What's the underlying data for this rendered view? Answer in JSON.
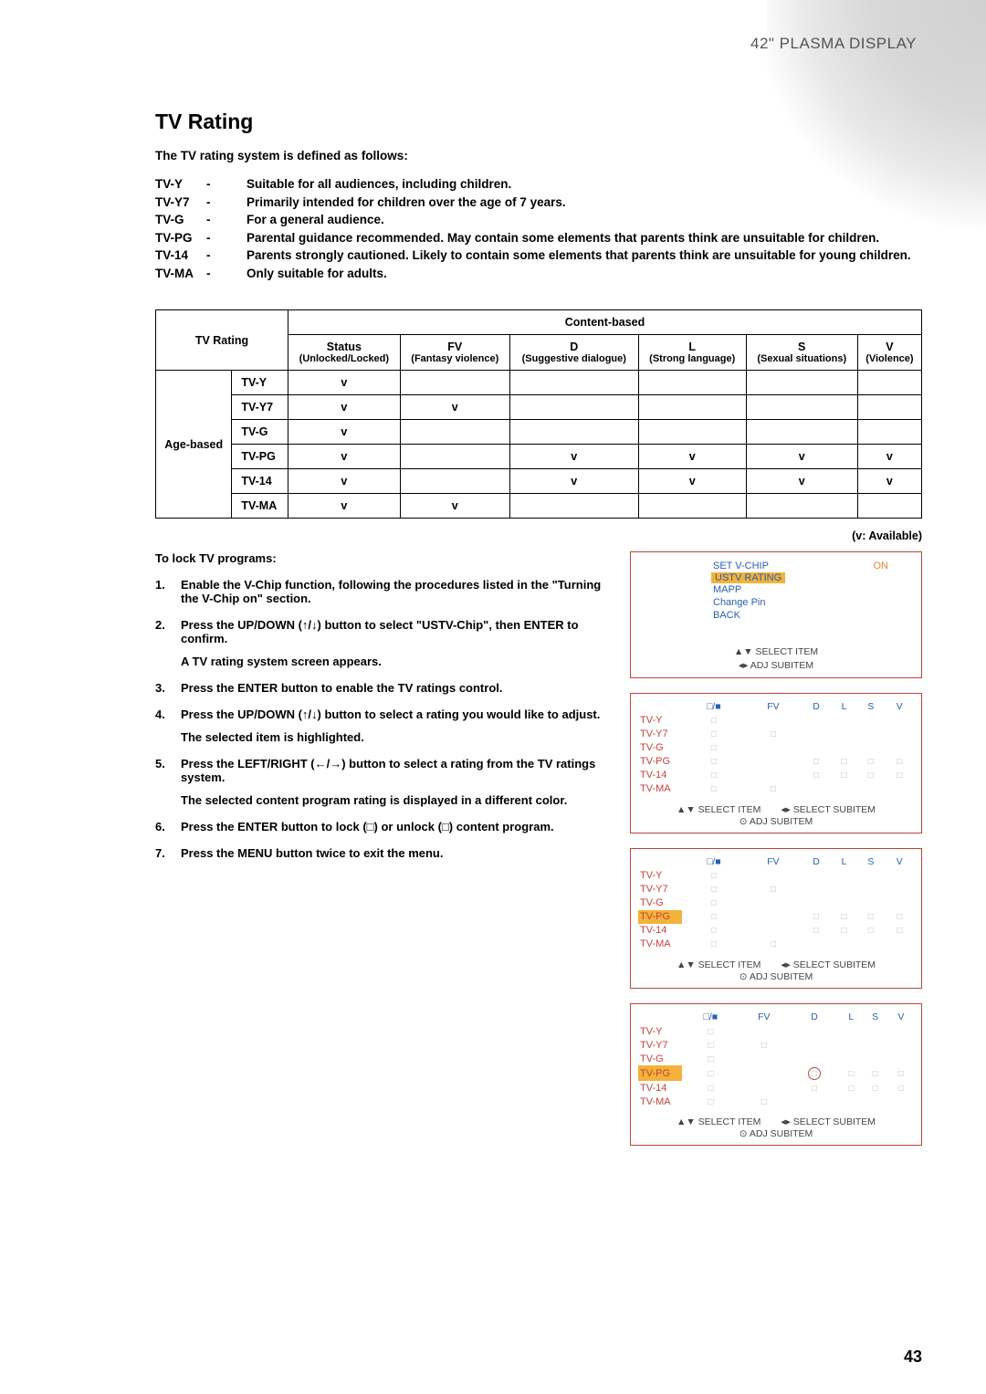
{
  "header": {
    "product": "42\" PLASMA DISPLAY"
  },
  "title": "TV Rating",
  "intro": "The TV rating system is defined as follows:",
  "definitions": [
    {
      "code": "TV-Y",
      "text": "Suitable for all audiences, including children."
    },
    {
      "code": "TV-Y7",
      "text": "Primarily intended for children over the age of 7 years."
    },
    {
      "code": "TV-G",
      "text": "For a general audience."
    },
    {
      "code": "TV-PG",
      "text": "Parental guidance recommended. May contain some elements that parents think are unsuitable for children."
    },
    {
      "code": "TV-14",
      "text": "Parents strongly cautioned. Likely to contain some elements that parents think are unsuitable for young children."
    },
    {
      "code": "TV-MA",
      "text": "Only suitable for adults."
    }
  ],
  "table": {
    "tvrating_header": "TV Rating",
    "content_header": "Content-based",
    "age_based": "Age-based",
    "cols": {
      "status": {
        "h": "Status",
        "s": "(Unlocked/Locked)"
      },
      "fv": {
        "h": "FV",
        "s": "(Fantasy violence)"
      },
      "d": {
        "h": "D",
        "s": "(Suggestive dialogue)"
      },
      "l": {
        "h": "L",
        "s": "(Strong language)"
      },
      "ss": {
        "h": "S",
        "s": "(Sexual situations)"
      },
      "v": {
        "h": "V",
        "s": "(Violence)"
      }
    },
    "rows": [
      {
        "label": "TV-Y",
        "cells": [
          "v",
          "",
          "",
          "",
          "",
          ""
        ]
      },
      {
        "label": "TV-Y7",
        "cells": [
          "v",
          "v",
          "",
          "",
          "",
          ""
        ]
      },
      {
        "label": "TV-G",
        "cells": [
          "v",
          "",
          "",
          "",
          "",
          ""
        ]
      },
      {
        "label": "TV-PG",
        "cells": [
          "v",
          "",
          "v",
          "v",
          "v",
          "v"
        ]
      },
      {
        "label": "TV-14",
        "cells": [
          "v",
          "",
          "v",
          "v",
          "v",
          "v"
        ]
      },
      {
        "label": "TV-MA",
        "cells": [
          "v",
          "v",
          "",
          "",
          "",
          ""
        ]
      }
    ]
  },
  "avail_note": "(v:  Available)",
  "instructions": {
    "lead": "To lock TV programs:",
    "steps": [
      {
        "n": "1.",
        "step": "Enable the V-Chip function, following the procedures listed in the \"Turning the V-Chip on\" section.",
        "note": ""
      },
      {
        "n": "2.",
        "step": "Press the UP/DOWN (↑/↓) button to select \"USTV-Chip\", then ENTER to confirm.",
        "note": "A TV rating system screen appears."
      },
      {
        "n": "3.",
        "step": "Press the ENTER button to enable the TV ratings control.",
        "note": ""
      },
      {
        "n": "4.",
        "step": "Press the UP/DOWN (↑/↓) button to select a rating you would like to adjust.",
        "note": "The selected item is highlighted."
      },
      {
        "n": "5.",
        "step": "Press the LEFT/RIGHT (←/→) button to select a rating from the TV ratings system.",
        "note": "The selected content program rating is displayed in a different color."
      },
      {
        "n": "6.",
        "step": "Press the ENTER button to lock (□) or unlock (□) content program.",
        "note": ""
      },
      {
        "n": "7.",
        "step": "Press the MENU button twice to exit the menu.",
        "note": ""
      }
    ]
  },
  "osd_menu": {
    "items": [
      {
        "label": "SET V-CHIP",
        "value": "ON"
      },
      {
        "label": "USTV RATING",
        "highlight": true
      },
      {
        "label": "MAPP"
      },
      {
        "label": "Change Pin"
      },
      {
        "label": "BACK"
      }
    ],
    "hint1": "▲▼ SELECT ITEM",
    "hint2": "◂▸ ADJ SUBITEM"
  },
  "osd_grid_common": {
    "headers": [
      "□/■",
      "FV",
      "D",
      "L",
      "S",
      "V"
    ],
    "row_labels": [
      "TV-Y",
      "TV-Y7",
      "TV-G",
      "TV-PG",
      "TV-14",
      "TV-MA"
    ],
    "locks": [
      [
        1,
        0,
        0,
        0,
        0,
        0
      ],
      [
        1,
        1,
        0,
        0,
        0,
        0
      ],
      [
        1,
        0,
        0,
        0,
        0,
        0
      ],
      [
        1,
        0,
        1,
        1,
        1,
        1
      ],
      [
        1,
        0,
        1,
        1,
        1,
        1
      ],
      [
        1,
        1,
        0,
        0,
        0,
        0
      ]
    ],
    "hint_select_item": "▲▼ SELECT ITEM",
    "hint_select_sub": "◂▸ SELECT SUBITEM",
    "hint_adj": "⊙ ADJ SUBITEM"
  },
  "osd_grids": [
    {
      "highlight_row": -1,
      "circle": null
    },
    {
      "highlight_row": 3,
      "circle": null
    },
    {
      "highlight_row": 3,
      "circle": [
        3,
        2
      ]
    }
  ],
  "page_number": "43",
  "colors": {
    "osd_border": "#c2433a",
    "osd_blue": "#2a5fb0",
    "osd_orange": "#e08a2a",
    "osd_highlight": "#f3b23a",
    "lock_gray": "#bdbdbd"
  }
}
